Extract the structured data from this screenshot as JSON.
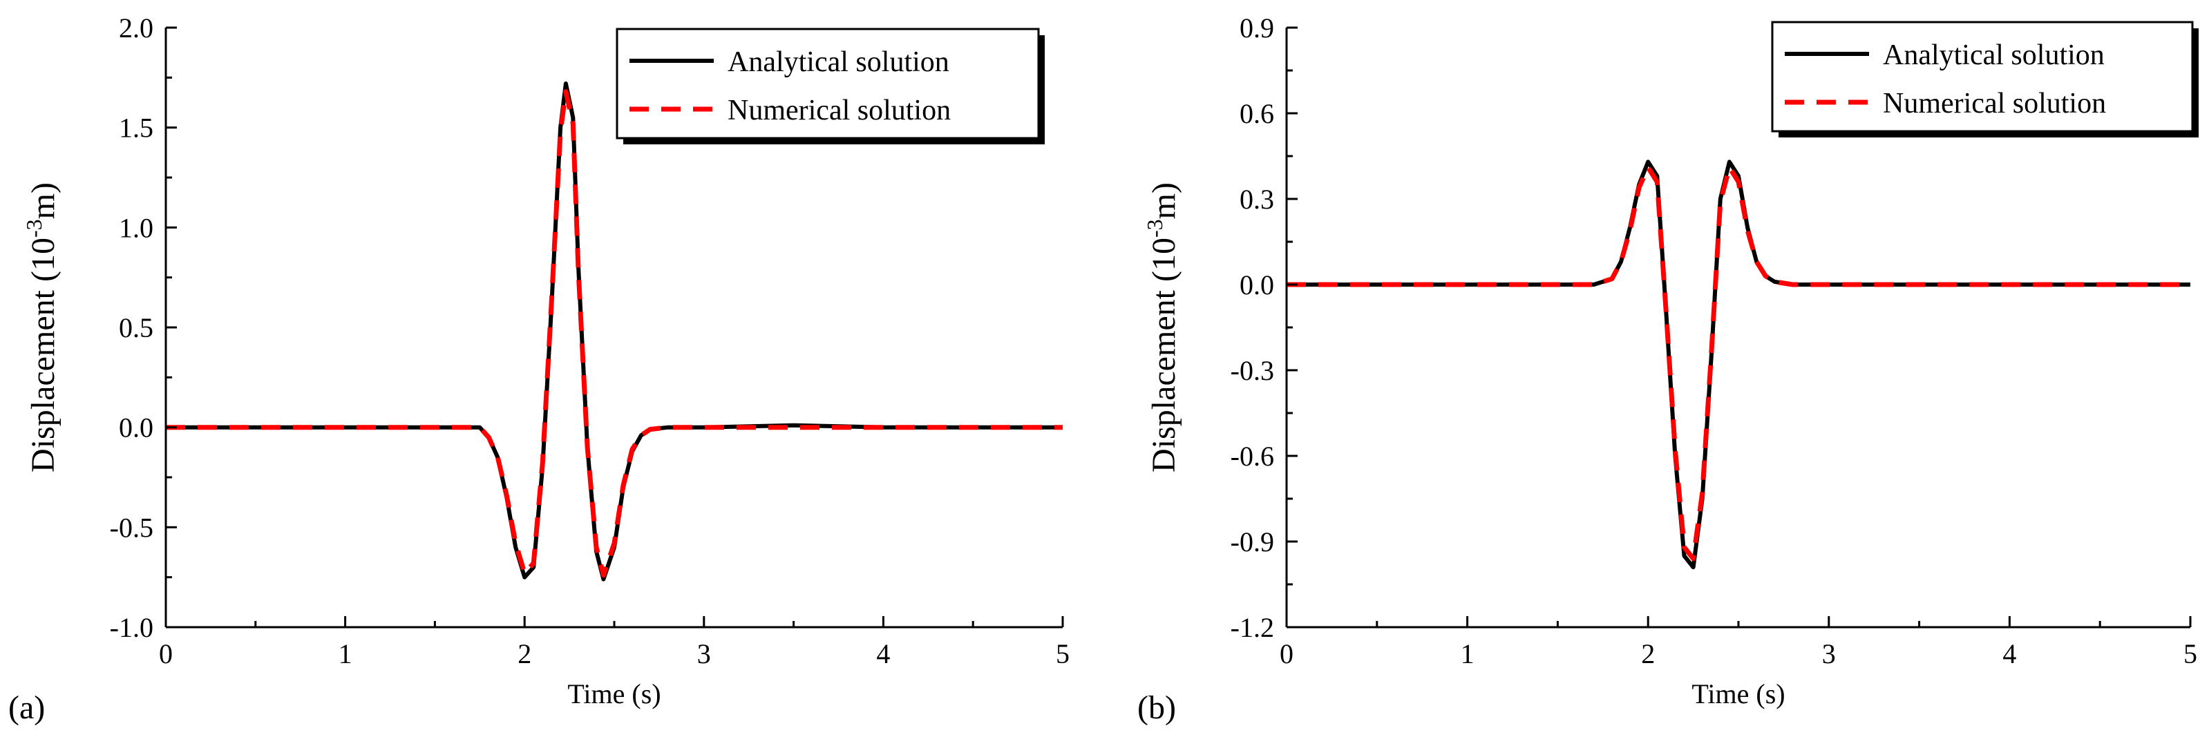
{
  "chart_data": [
    {
      "type": "line",
      "panel_label": "(a)",
      "xlabel": "Time (s)",
      "ylabel_main": "Displacement (10",
      "ylabel_sup": "-3",
      "ylabel_tail": "m)",
      "xlim": [
        0,
        5
      ],
      "ylim": [
        -1.0,
        2.0
      ],
      "xticks": [
        0,
        1,
        2,
        3,
        4,
        5
      ],
      "xtick_labels": [
        "0",
        "1",
        "2",
        "3",
        "4",
        "5"
      ],
      "yticks": [
        -1.0,
        -0.5,
        0.0,
        0.5,
        1.0,
        1.5,
        2.0
      ],
      "ytick_labels": [
        "-1.0",
        "-0.5",
        "0.0",
        "0.5",
        "1.0",
        "1.5",
        "2.0"
      ],
      "legend_position": "top-right",
      "series": [
        {
          "name": "Analytical solution",
          "color": "#000000",
          "style": "solid",
          "x": [
            0,
            0.5,
            1.0,
            1.5,
            1.75,
            1.8,
            1.85,
            1.9,
            1.95,
            2.0,
            2.05,
            2.1,
            2.15,
            2.2,
            2.23,
            2.27,
            2.3,
            2.35,
            2.4,
            2.44,
            2.5,
            2.55,
            2.6,
            2.65,
            2.7,
            2.8,
            3.0,
            3.5,
            4.0,
            4.5,
            5.0
          ],
          "y": [
            0.0,
            0.0,
            0.0,
            0.0,
            0.0,
            -0.05,
            -0.15,
            -0.35,
            -0.6,
            -0.75,
            -0.7,
            -0.2,
            0.6,
            1.5,
            1.72,
            1.55,
            0.8,
            -0.1,
            -0.62,
            -0.76,
            -0.6,
            -0.3,
            -0.12,
            -0.04,
            -0.01,
            0.0,
            0.0,
            0.01,
            0.0,
            0.0,
            0.0
          ]
        },
        {
          "name": "Numerical solution",
          "color": "#ff0000",
          "style": "dashed",
          "x": [
            0,
            0.5,
            1.0,
            1.5,
            1.75,
            1.8,
            1.85,
            1.9,
            1.95,
            2.0,
            2.05,
            2.1,
            2.15,
            2.2,
            2.23,
            2.27,
            2.3,
            2.35,
            2.4,
            2.44,
            2.5,
            2.55,
            2.6,
            2.65,
            2.7,
            2.8,
            3.0,
            3.5,
            4.0,
            4.5,
            5.0
          ],
          "y": [
            0.0,
            0.0,
            0.0,
            0.0,
            0.0,
            -0.05,
            -0.15,
            -0.34,
            -0.58,
            -0.73,
            -0.68,
            -0.18,
            0.62,
            1.48,
            1.68,
            1.52,
            0.78,
            -0.1,
            -0.6,
            -0.74,
            -0.58,
            -0.29,
            -0.11,
            -0.04,
            -0.01,
            0.0,
            0.0,
            0.0,
            0.0,
            0.0,
            0.0
          ]
        }
      ]
    },
    {
      "type": "line",
      "panel_label": "(b)",
      "xlabel": "Time (s)",
      "ylabel_main": "Displacement (10",
      "ylabel_sup": "-3",
      "ylabel_tail": "m)",
      "xlim": [
        0,
        5
      ],
      "ylim": [
        -1.2,
        0.9
      ],
      "xticks": [
        0,
        1,
        2,
        3,
        4,
        5
      ],
      "xtick_labels": [
        "0",
        "1",
        "2",
        "3",
        "4",
        "5"
      ],
      "yticks": [
        -1.2,
        -0.9,
        -0.6,
        -0.3,
        0.0,
        0.3,
        0.6,
        0.9
      ],
      "ytick_labels": [
        "-1.2",
        "-0.9",
        "-0.6",
        "-0.3",
        "0.0",
        "0.3",
        "0.6",
        "0.9"
      ],
      "legend_position": "top-right",
      "series": [
        {
          "name": "Analytical solution",
          "color": "#000000",
          "style": "solid",
          "x": [
            0,
            0.5,
            1.0,
            1.5,
            1.7,
            1.8,
            1.85,
            1.9,
            1.95,
            2.0,
            2.05,
            2.1,
            2.15,
            2.2,
            2.25,
            2.3,
            2.35,
            2.4,
            2.45,
            2.5,
            2.55,
            2.6,
            2.65,
            2.7,
            2.8,
            3.0,
            3.5,
            4.0,
            4.5,
            5.0
          ],
          "y": [
            0.0,
            0.0,
            0.0,
            0.0,
            0.0,
            0.02,
            0.08,
            0.2,
            0.35,
            0.43,
            0.38,
            -0.1,
            -0.6,
            -0.95,
            -0.99,
            -0.75,
            -0.25,
            0.3,
            0.43,
            0.38,
            0.2,
            0.08,
            0.03,
            0.01,
            0.0,
            0.0,
            0.0,
            0.0,
            0.0,
            0.0
          ]
        },
        {
          "name": "Numerical solution",
          "color": "#ff0000",
          "style": "dashed",
          "x": [
            0,
            0.5,
            1.0,
            1.5,
            1.7,
            1.8,
            1.85,
            1.9,
            1.95,
            2.0,
            2.05,
            2.1,
            2.15,
            2.2,
            2.25,
            2.3,
            2.35,
            2.4,
            2.45,
            2.5,
            2.55,
            2.6,
            2.65,
            2.7,
            2.8,
            3.0,
            3.5,
            4.0,
            4.5,
            5.0
          ],
          "y": [
            0.0,
            0.0,
            0.0,
            0.0,
            0.0,
            0.02,
            0.08,
            0.19,
            0.34,
            0.41,
            0.36,
            -0.1,
            -0.58,
            -0.92,
            -0.96,
            -0.73,
            -0.24,
            0.29,
            0.41,
            0.36,
            0.19,
            0.08,
            0.03,
            0.01,
            0.0,
            0.0,
            0.0,
            0.0,
            0.0,
            0.0
          ]
        }
      ]
    }
  ]
}
